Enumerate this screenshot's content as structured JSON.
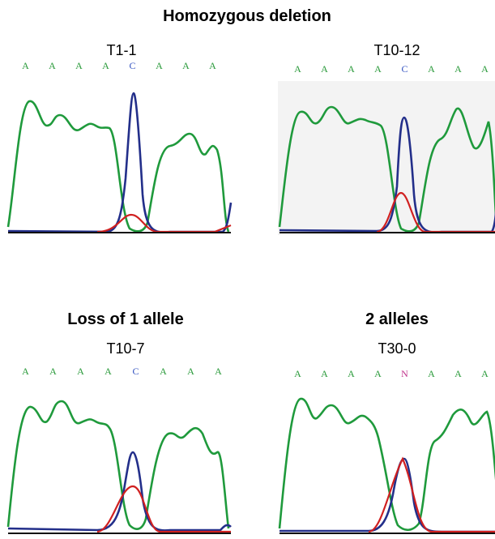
{
  "groups": [
    {
      "title": "Homozygous deletion",
      "panels": [
        {
          "label": "T1-1",
          "bases": [
            "A",
            "A",
            "A",
            "A",
            "C",
            "A",
            "A",
            "A"
          ]
        },
        {
          "label": "T10-12",
          "bases": [
            "A",
            "A",
            "A",
            "A",
            "C",
            "A",
            "A",
            "A"
          ]
        }
      ]
    },
    {
      "title": "Loss of 1 allele",
      "panels": [
        {
          "label": "T10-7",
          "bases": [
            "A",
            "A",
            "A",
            "A",
            "C",
            "A",
            "A",
            "A"
          ]
        }
      ]
    },
    {
      "title": "2 alleles",
      "panels": [
        {
          "label": "T30-0",
          "bases": [
            "A",
            "A",
            "A",
            "A",
            "N",
            "A",
            "A",
            "A"
          ]
        }
      ]
    }
  ]
}
